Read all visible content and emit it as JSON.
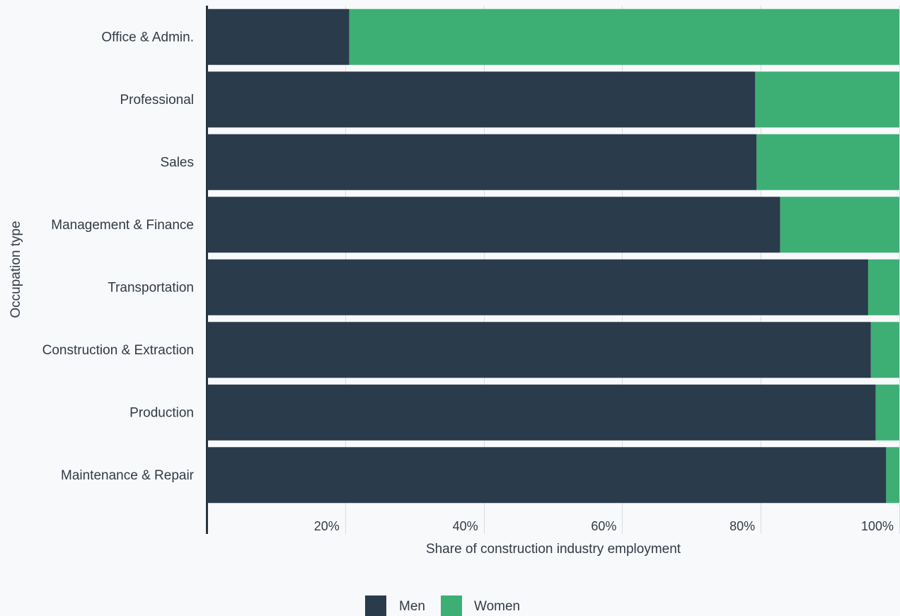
{
  "chart_data": {
    "type": "bar",
    "orientation": "horizontal",
    "stacked": true,
    "categories": [
      "Office & Admin.",
      "Professional",
      "Sales",
      "Management & Finance",
      "Transportation",
      "Construction & Extraction",
      "Production",
      "Maintenance & Repair"
    ],
    "series": [
      {
        "name": "Men",
        "color": "#2a3b4c",
        "values": [
          20.6,
          79.2,
          79.4,
          82.8,
          95.5,
          95.9,
          96.6,
          98.1
        ]
      },
      {
        "name": "Women",
        "color": "#3daf75",
        "values": [
          79.4,
          20.8,
          20.6,
          17.2,
          4.5,
          4.1,
          3.4,
          1.9
        ]
      }
    ],
    "xlabel": "Share of construction industry employment",
    "ylabel": "Occupation type",
    "xlim": [
      0,
      100
    ],
    "xticks": [
      20,
      40,
      60,
      80,
      100
    ],
    "xtick_labels": [
      "20%",
      "40%",
      "60%",
      "80%",
      "100%"
    ],
    "grid": true,
    "legend": {
      "placement": "bottom-center"
    }
  }
}
